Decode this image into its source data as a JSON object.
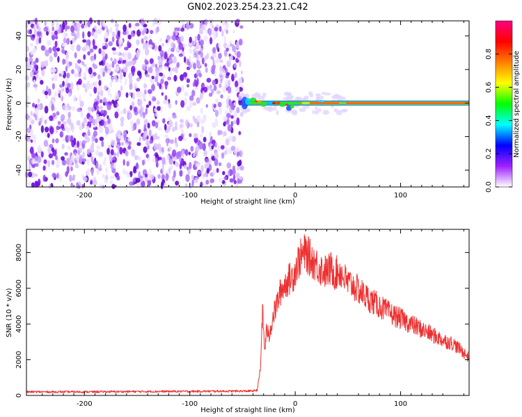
{
  "figure_title": "GN02.2023.254.23.21.C42",
  "colors": {
    "snr_line": "#ee3030",
    "frame": "#000000",
    "noise_purple": "#7a10e8"
  },
  "chart_data": [
    {
      "type": "heatmap",
      "title": "",
      "xlabel": "Height of straight line (km)",
      "ylabel": "Frequency (Hz)",
      "xlim": [
        -255,
        165
      ],
      "ylim": [
        -50,
        49
      ],
      "x_ticks": [
        -200,
        -100,
        0,
        100
      ],
      "y_ticks": [
        -40,
        -20,
        0,
        20,
        40
      ],
      "grid": false,
      "features": {
        "noise_region_x": [
          -255,
          -50
        ],
        "signal_band_center_hz": 0,
        "signal_start_x": -50
      },
      "colorbar": {
        "label": "Normalized spectral amplitude",
        "range": [
          0,
          1
        ],
        "ticks": [
          0.0,
          0.2,
          0.4,
          0.6,
          0.8
        ],
        "colors": [
          "#ffffff",
          "#a020ff",
          "#0000ff",
          "#00ffff",
          "#00ff00",
          "#ffff00",
          "#ff8000",
          "#ff0000",
          "#ff0080"
        ]
      }
    },
    {
      "type": "line",
      "title": "",
      "xlabel": "Height of straight line (km)",
      "ylabel": "SNR (10 * v/v)",
      "xlim": [
        -255,
        165
      ],
      "ylim": [
        0,
        9300
      ],
      "x_ticks": [
        -200,
        -100,
        0,
        100
      ],
      "y_ticks": [
        0,
        2000,
        4000,
        6000,
        8000
      ],
      "grid": false,
      "series": [
        {
          "x": [
            -255,
            -200,
            -150,
            -100,
            -60,
            -40,
            -36,
            -33,
            -31,
            -29,
            -27,
            -25,
            -22,
            -18,
            -14,
            -10,
            -6,
            -2,
            2,
            6,
            10,
            14,
            18,
            22,
            26,
            30,
            34,
            38,
            42,
            46,
            50,
            54,
            58,
            62,
            66,
            70,
            80,
            90,
            100,
            110,
            120,
            130,
            140,
            150,
            160,
            165
          ],
          "y": [
            200,
            200,
            220,
            230,
            240,
            250,
            300,
            1500,
            4800,
            2500,
            3800,
            3200,
            4200,
            5000,
            5800,
            6200,
            6500,
            6700,
            7400,
            7800,
            8000,
            7700,
            7500,
            7200,
            7000,
            6900,
            7100,
            6800,
            7000,
            6600,
            6300,
            6200,
            6000,
            5800,
            5600,
            5400,
            5000,
            4600,
            4300,
            4000,
            3700,
            3400,
            3100,
            2900,
            2400,
            2100
          ]
        }
      ]
    }
  ]
}
